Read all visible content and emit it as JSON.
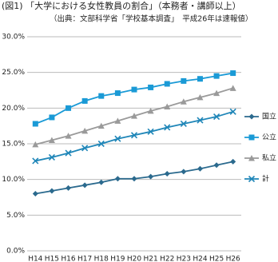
{
  "chart_data": {
    "type": "line",
    "title": "(図1) 「大学における女性教員の割合」（本務者・講師以上）",
    "subtitle": "（出典：文部科学省「学校基本調査」　平成26年は速報値）",
    "categories": [
      "H14",
      "H15",
      "H16",
      "H17",
      "H18",
      "H19",
      "H20",
      "H21",
      "H22",
      "H23",
      "H24",
      "H25",
      "H26"
    ],
    "series": [
      {
        "name": "国立",
        "color": "#2b6a8e",
        "marker": "diamond",
        "values": [
          8.0,
          8.4,
          8.8,
          9.2,
          9.6,
          10.1,
          10.1,
          10.4,
          10.8,
          11.1,
          11.5,
          12.0,
          12.5
        ]
      },
      {
        "name": "公立",
        "color": "#1a9ad6",
        "marker": "square",
        "values": [
          17.8,
          18.7,
          20.0,
          21.0,
          21.7,
          22.1,
          22.6,
          22.9,
          23.4,
          23.8,
          24.1,
          24.5,
          24.9
        ]
      },
      {
        "name": "私立",
        "color": "#9a9a9a",
        "marker": "triangle",
        "values": [
          14.9,
          15.5,
          16.1,
          16.8,
          17.5,
          18.2,
          18.9,
          19.6,
          20.2,
          20.9,
          21.5,
          22.1,
          22.8
        ]
      },
      {
        "name": "計",
        "color": "#1f86b8",
        "marker": "x",
        "values": [
          12.6,
          13.1,
          13.7,
          14.4,
          15.0,
          15.7,
          16.2,
          16.7,
          17.3,
          17.8,
          18.3,
          18.8,
          19.5
        ]
      }
    ],
    "ylim": [
      0,
      30
    ],
    "yticks": [
      {
        "value": 0,
        "label": "0.0%"
      },
      {
        "value": 5,
        "label": "5.0%"
      },
      {
        "value": 10,
        "label": "10.0%"
      },
      {
        "value": 15,
        "label": "15.0%"
      },
      {
        "value": 20,
        "label": "20.0%"
      },
      {
        "value": 25,
        "label": "25.0%"
      },
      {
        "value": 30,
        "label": "30.0%"
      }
    ],
    "grid": true,
    "legend": "right"
  }
}
